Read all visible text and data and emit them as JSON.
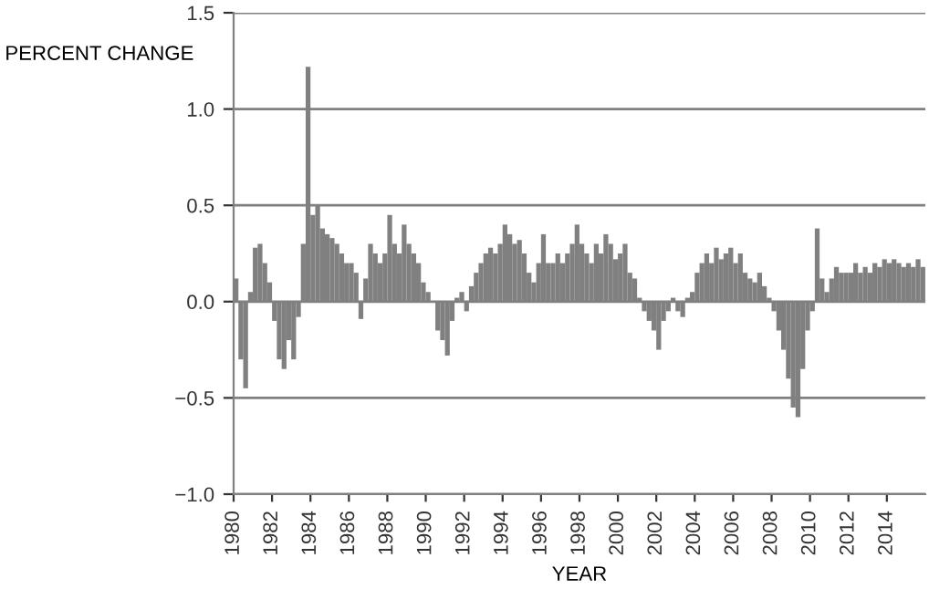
{
  "chart_data": {
    "type": "bar",
    "xlabel": "YEAR",
    "ylabel": "PERCENT CHANGE",
    "x": [
      1980.0,
      1980.25,
      1980.5,
      1980.75,
      1981.0,
      1981.25,
      1981.5,
      1981.75,
      1982.0,
      1982.25,
      1982.5,
      1982.75,
      1983.0,
      1983.25,
      1983.5,
      1983.75,
      1984.0,
      1984.25,
      1984.5,
      1984.75,
      1985.0,
      1985.25,
      1985.5,
      1985.75,
      1986.0,
      1986.25,
      1986.5,
      1986.75,
      1987.0,
      1987.25,
      1987.5,
      1987.75,
      1988.0,
      1988.25,
      1988.5,
      1988.75,
      1989.0,
      1989.25,
      1989.5,
      1989.75,
      1990.0,
      1990.25,
      1990.5,
      1990.75,
      1991.0,
      1991.25,
      1991.5,
      1991.75,
      1992.0,
      1992.25,
      1992.5,
      1992.75,
      1993.0,
      1993.25,
      1993.5,
      1993.75,
      1994.0,
      1994.25,
      1994.5,
      1994.75,
      1995.0,
      1995.25,
      1995.5,
      1995.75,
      1996.0,
      1996.25,
      1996.5,
      1996.75,
      1997.0,
      1997.25,
      1997.5,
      1997.75,
      1998.0,
      1998.25,
      1998.5,
      1998.75,
      1999.0,
      1999.25,
      1999.5,
      1999.75,
      2000.0,
      2000.25,
      2000.5,
      2000.75,
      2001.0,
      2001.25,
      2001.5,
      2001.75,
      2002.0,
      2002.25,
      2002.5,
      2002.75,
      2003.0,
      2003.25,
      2003.5,
      2003.75,
      2004.0,
      2004.25,
      2004.5,
      2004.75,
      2005.0,
      2005.25,
      2005.5,
      2005.75,
      2006.0,
      2006.25,
      2006.5,
      2006.75,
      2007.0,
      2007.25,
      2007.5,
      2007.75,
      2008.0,
      2008.25,
      2008.5,
      2008.75,
      2009.0,
      2009.25,
      2009.5,
      2009.75,
      2010.0,
      2010.25,
      2010.5,
      2010.75,
      2011.0,
      2011.25,
      2011.5,
      2011.75,
      2012.0,
      2012.25,
      2012.5,
      2012.75,
      2013.0,
      2013.25,
      2013.5,
      2013.75,
      2014.0,
      2014.25,
      2014.5,
      2014.75,
      2015.0,
      2015.25,
      2015.5,
      2015.75
    ],
    "series": [
      {
        "color": "#808080",
        "values": [
          0.12,
          -0.3,
          -0.45,
          0.05,
          0.28,
          0.3,
          0.2,
          0.1,
          -0.1,
          -0.3,
          -0.35,
          -0.2,
          -0.3,
          -0.08,
          0.3,
          1.22,
          0.45,
          0.5,
          0.38,
          0.35,
          0.33,
          0.3,
          0.25,
          0.2,
          0.2,
          0.15,
          -0.09,
          0.12,
          0.3,
          0.25,
          0.2,
          0.25,
          0.45,
          0.3,
          0.25,
          0.4,
          0.3,
          0.25,
          0.2,
          0.1,
          0.05,
          0.0,
          -0.15,
          -0.2,
          -0.28,
          -0.1,
          0.02,
          0.05,
          -0.05,
          0.08,
          0.15,
          0.2,
          0.25,
          0.28,
          0.25,
          0.3,
          0.4,
          0.35,
          0.3,
          0.32,
          0.25,
          0.15,
          0.1,
          0.2,
          0.35,
          0.2,
          0.2,
          0.25,
          0.2,
          0.25,
          0.3,
          0.4,
          0.3,
          0.25,
          0.2,
          0.3,
          0.25,
          0.35,
          0.3,
          0.22,
          0.25,
          0.3,
          0.15,
          0.12,
          0.02,
          -0.05,
          -0.1,
          -0.15,
          -0.25,
          -0.1,
          -0.05,
          0.02,
          -0.05,
          -0.08,
          0.02,
          0.05,
          0.15,
          0.2,
          0.25,
          0.2,
          0.28,
          0.22,
          0.25,
          0.28,
          0.2,
          0.25,
          0.15,
          0.12,
          0.1,
          0.15,
          0.08,
          0.02,
          -0.05,
          -0.15,
          -0.25,
          -0.4,
          -0.55,
          -0.6,
          -0.35,
          -0.15,
          -0.05,
          0.38,
          0.12,
          0.05,
          0.12,
          0.18,
          0.15,
          0.15,
          0.15,
          0.2,
          0.15,
          0.18,
          0.15,
          0.2,
          0.18,
          0.22,
          0.2,
          0.22,
          0.2,
          0.18,
          0.2,
          0.18,
          0.22,
          0.18
        ]
      }
    ],
    "xlim": [
      1980,
      2016
    ],
    "xticks": [
      1980,
      1982,
      1984,
      1986,
      1988,
      1990,
      1992,
      1994,
      1996,
      1998,
      2000,
      2002,
      2004,
      2006,
      2008,
      2010,
      2012,
      2014
    ],
    "ylim": [
      -1.0,
      1.5
    ],
    "yticks": [
      {
        "value": -1.0,
        "label": "−1.0"
      },
      {
        "value": -0.5,
        "label": "−0.5"
      },
      {
        "value": 0.0,
        "label": "0.0"
      },
      {
        "value": 0.5,
        "label": "0.5"
      },
      {
        "value": 1.0,
        "label": "1.0"
      },
      {
        "value": 1.5,
        "label": "1.5"
      }
    ],
    "grid": "y"
  }
}
